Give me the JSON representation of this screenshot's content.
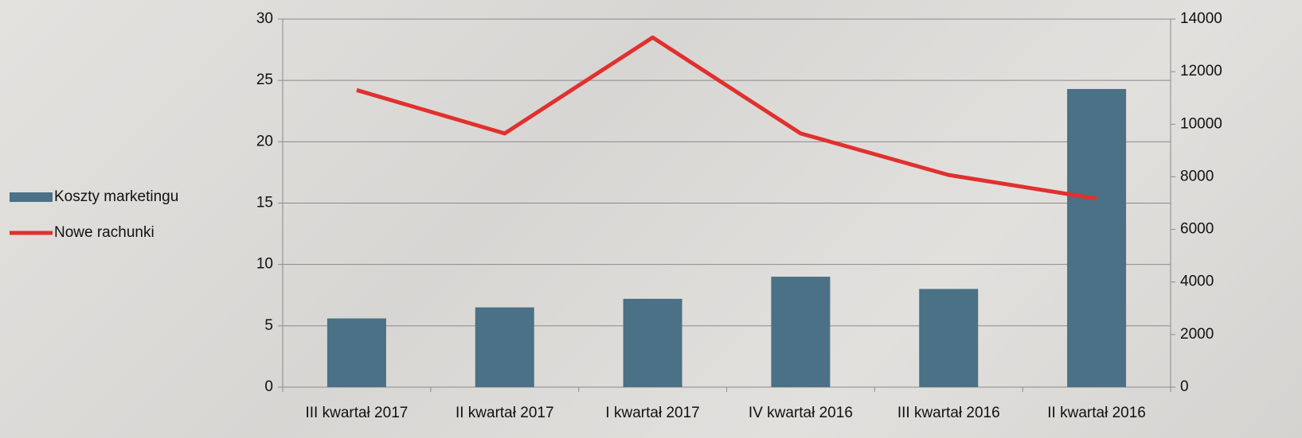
{
  "chart_data": {
    "type": "bar_line",
    "categories": [
      "III kwartał 2017",
      "II kwartał 2017",
      "I kwartał 2017",
      "IV kwartał 2016",
      "III kwartał 2016",
      "II kwartał 2016"
    ],
    "series": [
      {
        "name": "Koszty marketingu",
        "type": "bar",
        "color": "#4a7186",
        "values": [
          5.6,
          6.5,
          7.2,
          9.0,
          8.0,
          24.3
        ]
      },
      {
        "name": "Nowe rachunki",
        "type": "line",
        "color": "#e0312f",
        "axis": "y2",
        "values": [
          11300,
          9650,
          13300,
          9650,
          8070,
          7170
        ]
      }
    ],
    "ylim": [
      0,
      30
    ],
    "yticks": [
      0,
      5,
      10,
      15,
      20,
      25,
      30
    ],
    "y2lim": [
      0,
      14000
    ],
    "y2ticks": [
      0,
      2000,
      4000,
      6000,
      8000,
      10000,
      12000,
      14000
    ],
    "grid": true,
    "legend": "left"
  }
}
